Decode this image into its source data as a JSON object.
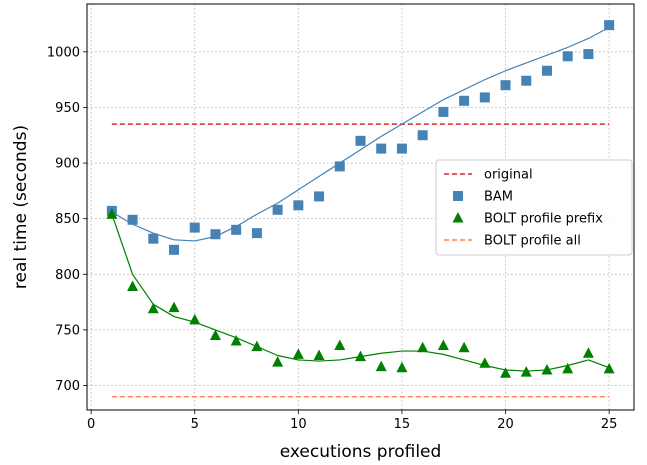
{
  "chart_data": {
    "type": "scatter",
    "xlabel": "executions profiled",
    "ylabel": "real time (seconds)",
    "xlim": [
      -0.2,
      26.2
    ],
    "ylim": [
      678,
      1043
    ],
    "xticks": [
      0,
      5,
      10,
      15,
      20,
      25
    ],
    "yticks": [
      700,
      750,
      800,
      850,
      900,
      950,
      1000
    ],
    "grid": true,
    "legend_position": "center-right",
    "colors": {
      "original": "#d62728",
      "bam": "#4682b4",
      "bolt_prefix": "#008000",
      "bolt_all": "#ff7f50"
    },
    "series": [
      {
        "name": "original",
        "kind": "hline",
        "style": "dashed",
        "x": [
          1,
          25
        ],
        "values": [
          935,
          935
        ]
      },
      {
        "name": "BAM",
        "kind": "scatter",
        "marker": "square",
        "x": [
          1,
          2,
          3,
          4,
          5,
          6,
          7,
          8,
          9,
          10,
          11,
          12,
          13,
          14,
          15,
          16,
          17,
          18,
          19,
          20,
          21,
          22,
          23,
          24,
          25
        ],
        "values": [
          857,
          849,
          832,
          822,
          842,
          836,
          840,
          837,
          858,
          862,
          870,
          897,
          920,
          913,
          913,
          925,
          946,
          956,
          959,
          970,
          974,
          983,
          996,
          998,
          1024
        ]
      },
      {
        "name": "BOLT profile prefix",
        "kind": "scatter",
        "marker": "triangle",
        "x": [
          1,
          2,
          3,
          4,
          5,
          6,
          7,
          8,
          9,
          10,
          11,
          12,
          13,
          14,
          15,
          16,
          17,
          18,
          19,
          20,
          21,
          22,
          23,
          24,
          25
        ],
        "values": [
          854,
          789,
          769,
          770,
          759,
          745,
          740,
          735,
          721,
          728,
          727,
          736,
          726,
          717,
          716,
          734,
          736,
          734,
          720,
          711,
          712,
          714,
          715,
          729,
          715
        ]
      },
      {
        "name": "BOLT profile all",
        "kind": "hline",
        "style": "dashed",
        "x": [
          1,
          25
        ],
        "values": [
          690,
          690
        ]
      }
    ],
    "fit_lines": [
      {
        "for": "BAM",
        "x": [
          1,
          2,
          3,
          4,
          5,
          6,
          7,
          8,
          9,
          10,
          11,
          12,
          13,
          14,
          15,
          16,
          17,
          18,
          19,
          20,
          21,
          22,
          23,
          24,
          25
        ],
        "values": [
          856,
          845,
          837,
          831,
          830,
          834,
          843,
          854,
          864,
          876,
          888,
          900,
          912,
          924,
          935,
          946,
          957,
          966,
          975,
          983,
          990,
          997,
          1004,
          1012,
          1022
        ]
      },
      {
        "for": "BOLT profile prefix",
        "x": [
          1,
          2,
          3,
          4,
          5,
          6,
          7,
          8,
          9,
          10,
          11,
          12,
          13,
          14,
          15,
          16,
          17,
          18,
          19,
          20,
          21,
          22,
          23,
          24,
          25
        ],
        "values": [
          854,
          800,
          773,
          762,
          757,
          750,
          743,
          735,
          727,
          723,
          722,
          723,
          726,
          729,
          731,
          731,
          728,
          723,
          718,
          714,
          713,
          714,
          718,
          723,
          716
        ]
      }
    ]
  }
}
